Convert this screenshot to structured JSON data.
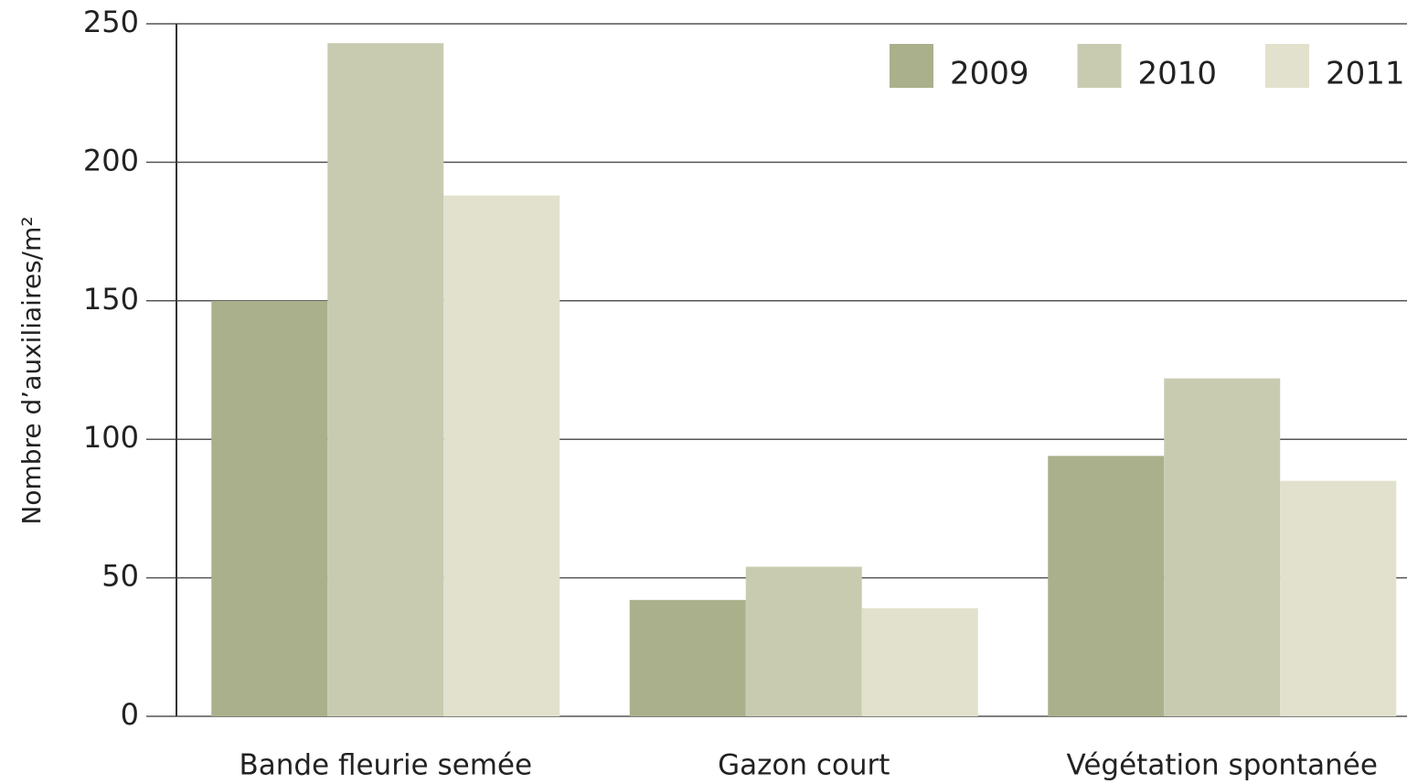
{
  "chart_data": {
    "type": "bar",
    "y_label": "Nombre d’auxiliaires/m²",
    "categories": [
      "Bande fleurie semée",
      "Gazon court",
      "Végétation spontanée"
    ],
    "series": [
      {
        "name": "2009",
        "color": "#a9b08b",
        "values": [
          150,
          42,
          94
        ]
      },
      {
        "name": "2010",
        "color": "#c9cbb1",
        "values": [
          243,
          54,
          122
        ]
      },
      {
        "name": "2011",
        "color": "#e1e1cd",
        "values": [
          188,
          39,
          85
        ]
      }
    ],
    "ylim": [
      0,
      250
    ],
    "yticks": [
      0,
      50,
      100,
      150,
      200,
      250
    ],
    "grid": true
  }
}
